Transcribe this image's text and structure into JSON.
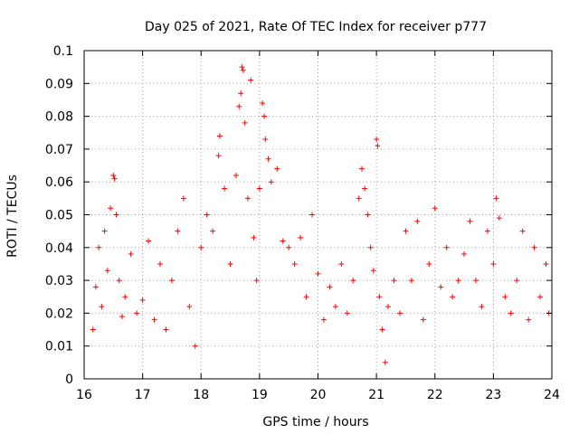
{
  "chart_data": {
    "type": "scatter",
    "title": "Day 025 of 2021, Rate Of TEC Index for receiver p777",
    "xlabel": "GPS time / hours",
    "ylabel": "ROTI / TECUs",
    "xlim": [
      16,
      24
    ],
    "ylim": [
      0,
      0.1
    ],
    "x_ticks": [
      "16",
      "17",
      "18",
      "19",
      "20",
      "21",
      "22",
      "23",
      "24"
    ],
    "y_ticks": [
      "0",
      "0.01",
      "0.02",
      "0.03",
      "0.04",
      "0.05",
      "0.06",
      "0.07",
      "0.08",
      "0.09",
      "0.1"
    ],
    "grid": true,
    "marker": "+",
    "color": "#ff0000",
    "series": [
      {
        "name": "ROTI",
        "points": [
          [
            16.15,
            0.015
          ],
          [
            16.2,
            0.028
          ],
          [
            16.25,
            0.04
          ],
          [
            16.3,
            0.022
          ],
          [
            16.35,
            0.045
          ],
          [
            16.4,
            0.033
          ],
          [
            16.45,
            0.052
          ],
          [
            16.5,
            0.062
          ],
          [
            16.52,
            0.061
          ],
          [
            16.55,
            0.05
          ],
          [
            16.6,
            0.03
          ],
          [
            16.65,
            0.019
          ],
          [
            16.7,
            0.025
          ],
          [
            16.8,
            0.038
          ],
          [
            16.9,
            0.02
          ],
          [
            17.0,
            0.024
          ],
          [
            17.1,
            0.042
          ],
          [
            17.2,
            0.018
          ],
          [
            17.3,
            0.035
          ],
          [
            17.4,
            0.015
          ],
          [
            17.5,
            0.03
          ],
          [
            17.6,
            0.045
          ],
          [
            17.7,
            0.055
          ],
          [
            17.8,
            0.022
          ],
          [
            17.9,
            0.01
          ],
          [
            18.0,
            0.04
          ],
          [
            18.1,
            0.05
          ],
          [
            18.2,
            0.045
          ],
          [
            18.3,
            0.068
          ],
          [
            18.32,
            0.074
          ],
          [
            18.4,
            0.058
          ],
          [
            18.5,
            0.035
          ],
          [
            18.6,
            0.062
          ],
          [
            18.65,
            0.083
          ],
          [
            18.68,
            0.087
          ],
          [
            18.7,
            0.095
          ],
          [
            18.72,
            0.094
          ],
          [
            18.75,
            0.078
          ],
          [
            18.8,
            0.055
          ],
          [
            18.85,
            0.091
          ],
          [
            18.9,
            0.043
          ],
          [
            18.95,
            0.03
          ],
          [
            19.0,
            0.058
          ],
          [
            19.05,
            0.084
          ],
          [
            19.08,
            0.08
          ],
          [
            19.1,
            0.073
          ],
          [
            19.15,
            0.067
          ],
          [
            19.2,
            0.06
          ],
          [
            19.3,
            0.064
          ],
          [
            19.4,
            0.042
          ],
          [
            19.5,
            0.04
          ],
          [
            19.6,
            0.035
          ],
          [
            19.7,
            0.043
          ],
          [
            19.8,
            0.025
          ],
          [
            19.9,
            0.05
          ],
          [
            20.0,
            0.032
          ],
          [
            20.1,
            0.018
          ],
          [
            20.2,
            0.028
          ],
          [
            20.3,
            0.022
          ],
          [
            20.4,
            0.035
          ],
          [
            20.5,
            0.02
          ],
          [
            20.6,
            0.03
          ],
          [
            20.7,
            0.055
          ],
          [
            20.75,
            0.064
          ],
          [
            20.8,
            0.058
          ],
          [
            20.85,
            0.05
          ],
          [
            20.9,
            0.04
          ],
          [
            20.95,
            0.033
          ],
          [
            21.0,
            0.073
          ],
          [
            21.02,
            0.071
          ],
          [
            21.05,
            0.025
          ],
          [
            21.1,
            0.015
          ],
          [
            21.15,
            0.005
          ],
          [
            21.2,
            0.022
          ],
          [
            21.3,
            0.03
          ],
          [
            21.4,
            0.02
          ],
          [
            21.5,
            0.045
          ],
          [
            21.6,
            0.03
          ],
          [
            21.7,
            0.048
          ],
          [
            21.8,
            0.018
          ],
          [
            21.9,
            0.035
          ],
          [
            22.0,
            0.052
          ],
          [
            22.1,
            0.028
          ],
          [
            22.2,
            0.04
          ],
          [
            22.3,
            0.025
          ],
          [
            22.4,
            0.03
          ],
          [
            22.5,
            0.038
          ],
          [
            22.6,
            0.048
          ],
          [
            22.7,
            0.03
          ],
          [
            22.8,
            0.022
          ],
          [
            22.9,
            0.045
          ],
          [
            23.0,
            0.035
          ],
          [
            23.05,
            0.055
          ],
          [
            23.1,
            0.049
          ],
          [
            23.2,
            0.025
          ],
          [
            23.3,
            0.02
          ],
          [
            23.4,
            0.03
          ],
          [
            23.5,
            0.045
          ],
          [
            23.6,
            0.018
          ],
          [
            23.7,
            0.04
          ],
          [
            23.8,
            0.025
          ],
          [
            23.9,
            0.035
          ],
          [
            23.95,
            0.02
          ]
        ]
      }
    ]
  }
}
